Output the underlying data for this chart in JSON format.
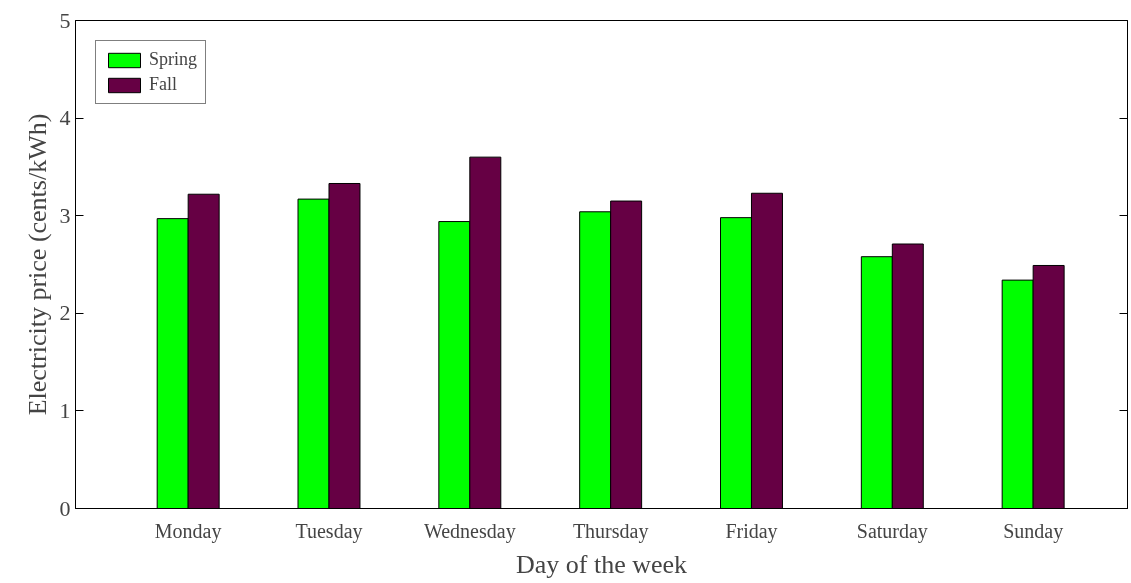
{
  "chart_data": {
    "type": "bar",
    "xlabel": "Day of the week",
    "ylabel": "Electricity price (cents/kWh)",
    "categories": [
      "Monday",
      "Tuesday",
      "Wednesday",
      "Thursday",
      "Friday",
      "Saturday",
      "Sunday"
    ],
    "series": [
      {
        "name": "Spring",
        "color": "#00ff00",
        "values": [
          2.97,
          3.17,
          2.94,
          3.04,
          2.98,
          2.58,
          2.34
        ]
      },
      {
        "name": "Fall",
        "color": "#660044",
        "values": [
          3.22,
          3.33,
          3.6,
          3.15,
          3.23,
          2.71,
          2.49
        ]
      }
    ],
    "ylim": [
      0,
      5
    ],
    "yticks": [
      0,
      1,
      2,
      3,
      4,
      5
    ],
    "grid": false,
    "legend": "top left"
  }
}
